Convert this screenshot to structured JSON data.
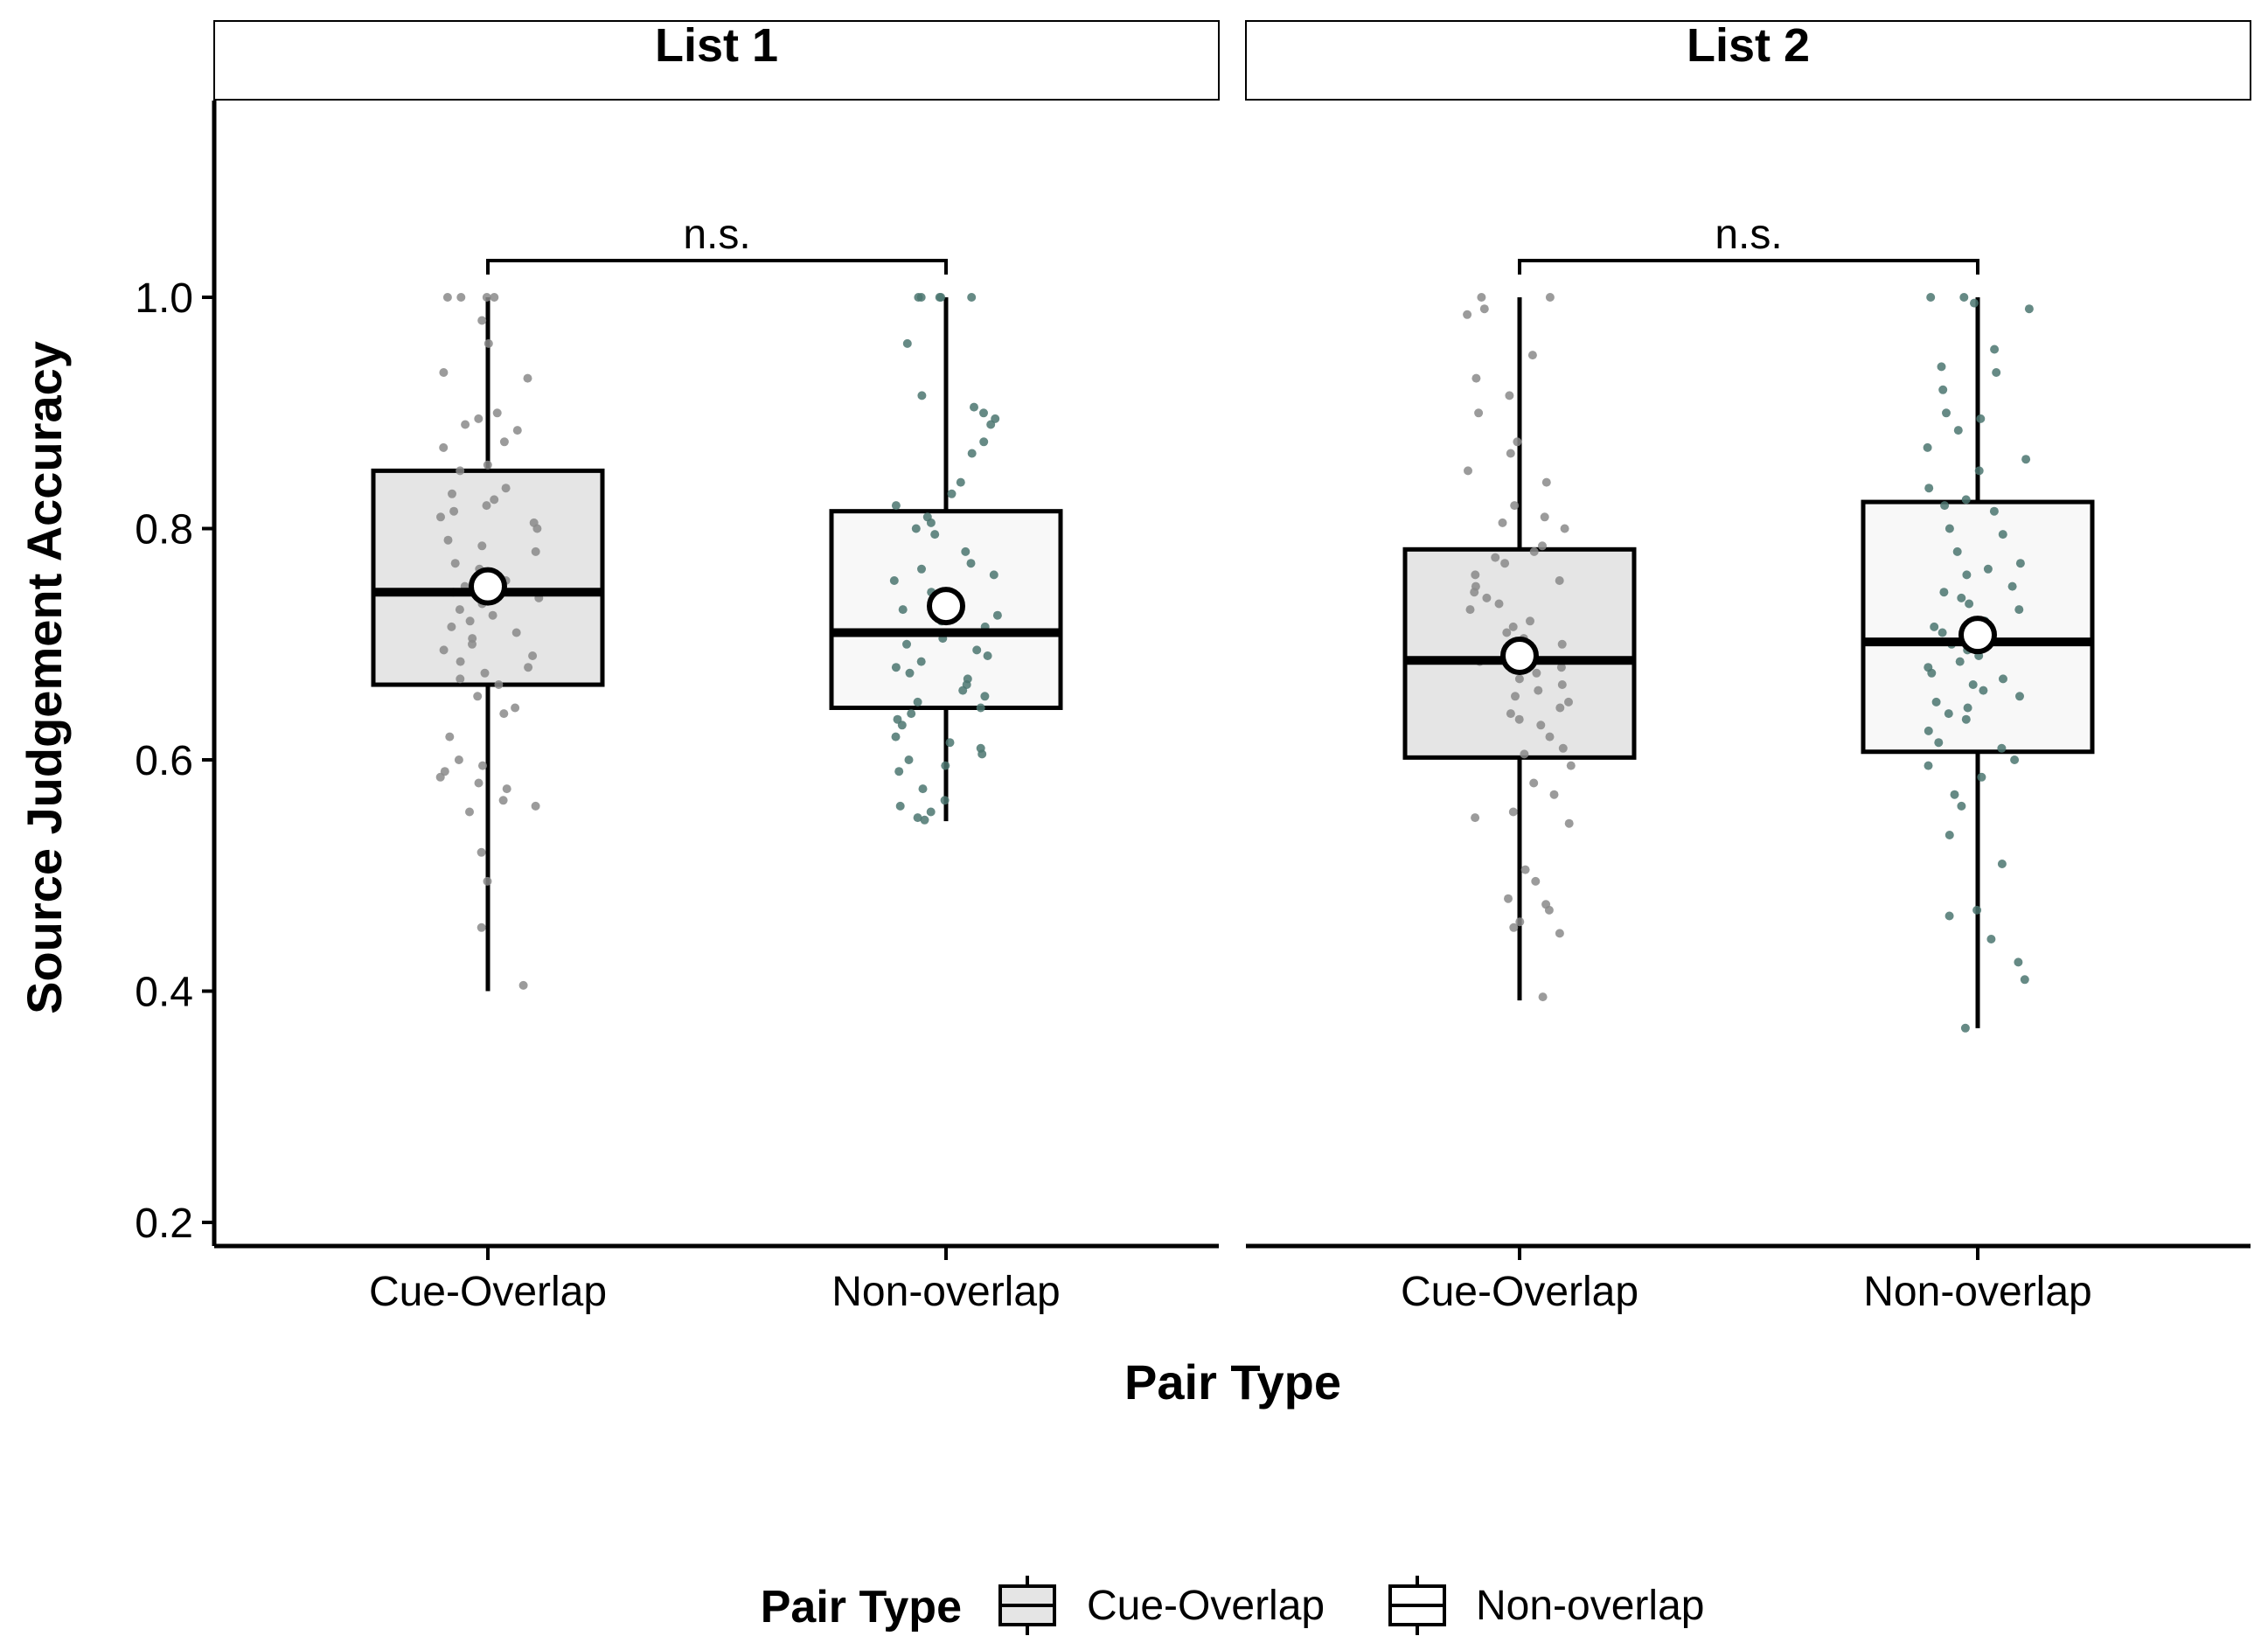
{
  "chart_data": {
    "type": "box",
    "ylabel": "Source Judgement Accuracy",
    "xlabel": "Pair Type",
    "ylim": [
      0.18,
      1.2
    ],
    "yticks": [
      0.2,
      0.4,
      0.6,
      0.8,
      1.0
    ],
    "ytick_labels": [
      "0.2",
      "0.4",
      "0.6",
      "0.8",
      "1.0"
    ],
    "categories": [
      "Cue-Overlap",
      "Non-overlap"
    ],
    "legend": {
      "title": "Pair Type",
      "position": "bottom",
      "entries": [
        "Cue-Overlap",
        "Non-overlap"
      ]
    },
    "colors": {
      "Cue-Overlap": "#e5e5e5",
      "Non-overlap": "#f8f8f8",
      "points_cue": "#8a8a8a",
      "points_non": "#4b7570"
    },
    "panels": [
      {
        "label": "List 1",
        "significance": "n.s.",
        "series": [
          {
            "name": "Cue-Overlap",
            "min": 0.4,
            "q1": 0.665,
            "median": 0.745,
            "q3": 0.85,
            "max": 1.0,
            "mean": 0.75,
            "points": [
              1.0,
              1.0,
              1.0,
              1.0,
              0.98,
              0.96,
              0.935,
              0.93,
              0.9,
              0.895,
              0.89,
              0.885,
              0.875,
              0.87,
              0.855,
              0.85,
              0.835,
              0.83,
              0.825,
              0.82,
              0.815,
              0.81,
              0.805,
              0.8,
              0.79,
              0.785,
              0.78,
              0.77,
              0.765,
              0.76,
              0.755,
              0.75,
              0.745,
              0.74,
              0.735,
              0.73,
              0.725,
              0.72,
              0.715,
              0.71,
              0.705,
              0.7,
              0.695,
              0.69,
              0.685,
              0.68,
              0.675,
              0.67,
              0.665,
              0.655,
              0.645,
              0.64,
              0.62,
              0.6,
              0.595,
              0.59,
              0.585,
              0.58,
              0.575,
              0.565,
              0.56,
              0.555,
              0.52,
              0.495,
              0.455,
              0.405
            ]
          },
          {
            "name": "Non-overlap",
            "min": 0.547,
            "q1": 0.645,
            "median": 0.71,
            "q3": 0.815,
            "max": 1.0,
            "mean": 0.733,
            "points": [
              1.0,
              1.0,
              1.0,
              1.0,
              1.0,
              0.96,
              0.915,
              0.905,
              0.9,
              0.895,
              0.89,
              0.875,
              0.865,
              0.84,
              0.83,
              0.82,
              0.81,
              0.805,
              0.8,
              0.795,
              0.78,
              0.77,
              0.765,
              0.76,
              0.755,
              0.745,
              0.74,
              0.735,
              0.73,
              0.725,
              0.72,
              0.715,
              0.71,
              0.705,
              0.7,
              0.695,
              0.69,
              0.685,
              0.68,
              0.675,
              0.67,
              0.665,
              0.66,
              0.655,
              0.65,
              0.645,
              0.64,
              0.635,
              0.63,
              0.62,
              0.615,
              0.61,
              0.605,
              0.6,
              0.595,
              0.59,
              0.575,
              0.565,
              0.56,
              0.555,
              0.55,
              0.548
            ]
          }
        ]
      },
      {
        "label": "List 2",
        "significance": "n.s.",
        "series": [
          {
            "name": "Cue-Overlap",
            "min": 0.392,
            "q1": 0.602,
            "median": 0.686,
            "q3": 0.782,
            "max": 1.0,
            "mean": 0.69,
            "points": [
              1.0,
              1.0,
              0.99,
              0.985,
              0.95,
              0.93,
              0.915,
              0.9,
              0.875,
              0.865,
              0.85,
              0.84,
              0.82,
              0.81,
              0.805,
              0.8,
              0.785,
              0.78,
              0.775,
              0.77,
              0.76,
              0.755,
              0.75,
              0.745,
              0.74,
              0.735,
              0.73,
              0.72,
              0.715,
              0.71,
              0.705,
              0.7,
              0.695,
              0.69,
              0.685,
              0.68,
              0.675,
              0.67,
              0.665,
              0.66,
              0.655,
              0.65,
              0.645,
              0.64,
              0.635,
              0.63,
              0.62,
              0.61,
              0.605,
              0.595,
              0.58,
              0.57,
              0.555,
              0.55,
              0.545,
              0.505,
              0.495,
              0.48,
              0.475,
              0.47,
              0.46,
              0.455,
              0.45,
              0.395
            ]
          },
          {
            "name": "Non-overlap",
            "min": 0.368,
            "q1": 0.607,
            "median": 0.702,
            "q3": 0.823,
            "max": 1.0,
            "mean": 0.708,
            "points": [
              1.0,
              1.0,
              0.995,
              0.99,
              0.955,
              0.94,
              0.935,
              0.92,
              0.9,
              0.895,
              0.885,
              0.87,
              0.86,
              0.85,
              0.835,
              0.825,
              0.82,
              0.815,
              0.8,
              0.795,
              0.78,
              0.77,
              0.765,
              0.76,
              0.75,
              0.745,
              0.74,
              0.735,
              0.73,
              0.72,
              0.715,
              0.71,
              0.705,
              0.7,
              0.695,
              0.69,
              0.685,
              0.68,
              0.675,
              0.67,
              0.665,
              0.66,
              0.655,
              0.65,
              0.645,
              0.64,
              0.635,
              0.625,
              0.615,
              0.61,
              0.6,
              0.595,
              0.585,
              0.57,
              0.56,
              0.535,
              0.51,
              0.47,
              0.465,
              0.445,
              0.425,
              0.41,
              0.368
            ]
          }
        ]
      }
    ]
  }
}
